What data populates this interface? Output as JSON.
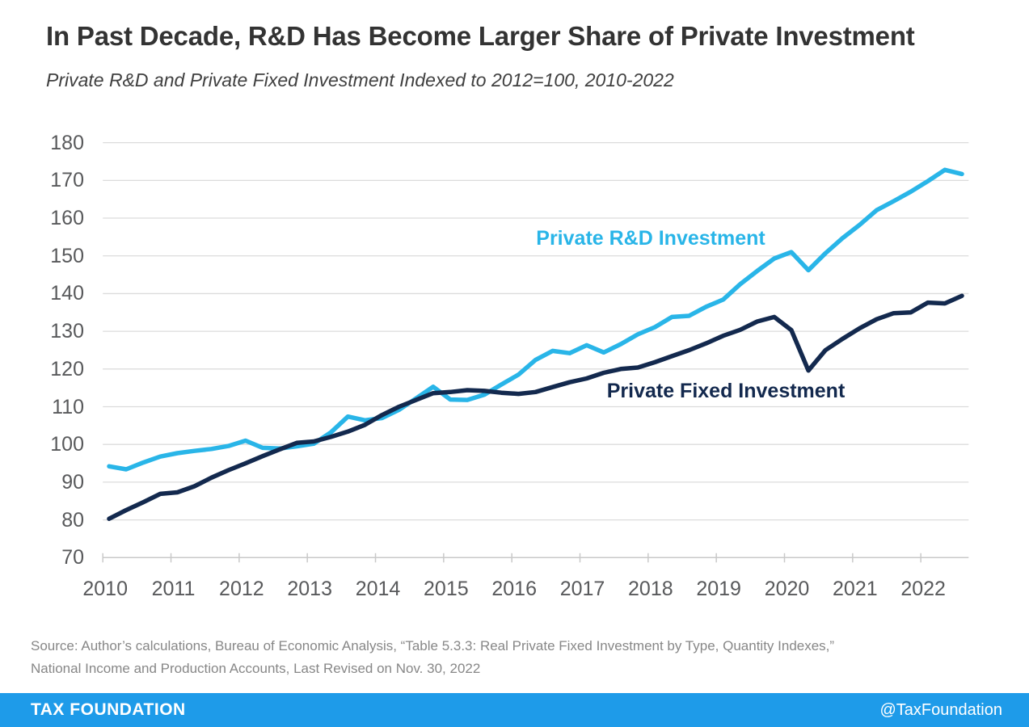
{
  "header": {
    "title": "In Past Decade, R&D Has Become Larger Share of Private Investment",
    "subtitle": "Private R&D and Private Fixed Investment Indexed to 2012=100, 2010-2022"
  },
  "chart_data": {
    "type": "line",
    "title": "In Past Decade, R&D Has Become Larger Share of Private Investment",
    "subtitle": "Private R&D and Private Fixed Investment Indexed to 2012=100, 2010-2022",
    "index_note": "2012=100",
    "x_frequency": "quarterly",
    "x_start": "2010Q1",
    "x_end": "2022Q3",
    "x_tick_labels": [
      "2010",
      "2011",
      "2012",
      "2013",
      "2014",
      "2015",
      "2016",
      "2017",
      "2018",
      "2019",
      "2020",
      "2021",
      "2022"
    ],
    "y_ticks": [
      70,
      80,
      90,
      100,
      110,
      120,
      130,
      140,
      150,
      160,
      170,
      180
    ],
    "ylim": [
      70,
      180
    ],
    "grid": "horizontal",
    "legend_position": "inline-labels",
    "series": [
      {
        "name": "Private R&D Investment",
        "color": "#29b5e8",
        "values": [
          94.2,
          93.4,
          95.2,
          96.8,
          97.7,
          98.3,
          98.8,
          99.6,
          101.0,
          99.1,
          98.9,
          99.5,
          100.2,
          103.2,
          107.4,
          106.4,
          107.0,
          109.2,
          112.2,
          115.3,
          111.9,
          111.8,
          113.2,
          115.9,
          118.5,
          122.4,
          124.8,
          124.2,
          126.3,
          124.4,
          126.6,
          129.2,
          131.1,
          133.8,
          134.1,
          136.5,
          138.4,
          142.5,
          146.0,
          149.3,
          151.0,
          146.2,
          150.7,
          154.7,
          158.2,
          162.1,
          164.5,
          167.0,
          169.8,
          172.8,
          171.7
        ]
      },
      {
        "name": "Private Fixed Investment",
        "color": "#13294e",
        "values": [
          80.3,
          82.6,
          84.7,
          86.9,
          87.3,
          88.9,
          91.2,
          93.2,
          95.0,
          96.9,
          98.7,
          100.4,
          100.8,
          102.0,
          103.4,
          105.2,
          107.8,
          110.0,
          111.8,
          113.6,
          113.9,
          114.4,
          114.2,
          113.7,
          113.4,
          113.9,
          115.2,
          116.5,
          117.5,
          119.0,
          120.0,
          120.4,
          121.8,
          123.4,
          125.0,
          126.8,
          128.8,
          130.4,
          132.6,
          133.8,
          130.3,
          119.6,
          125.0,
          128.0,
          130.8,
          133.2,
          134.8,
          135.0,
          137.6,
          137.4,
          139.4
        ]
      }
    ]
  },
  "annotations": {
    "rd_label": "Private R&D Investment",
    "fixed_label": "Private Fixed Investment"
  },
  "source": {
    "line1": "Source: Author’s calculations, Bureau of Economic Analysis, “Table 5.3.3: Real Private Fixed Investment by Type, Quantity Indexes,”",
    "line2": "National Income and Production Accounts, Last Revised on Nov. 30, 2022"
  },
  "footer": {
    "brand": "TAX FOUNDATION",
    "handle": "@TaxFoundation",
    "bar_color": "#1e9be9"
  }
}
